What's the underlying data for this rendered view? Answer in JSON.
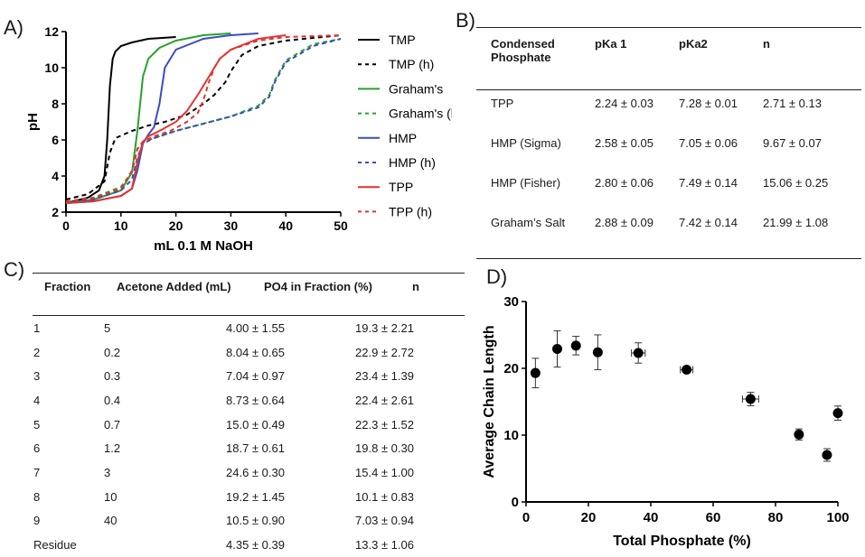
{
  "panel_labels": {
    "a": "A)",
    "b": "B)",
    "c": "C)",
    "d": "D)"
  },
  "chart_data": [
    {
      "type": "line",
      "xlabel": "mL 0.1 M NaOH",
      "ylabel": "pH",
      "xlim": [
        0,
        50
      ],
      "ylim": [
        2,
        12
      ],
      "xticks": [
        0,
        10,
        20,
        30,
        40,
        50
      ],
      "yticks": [
        2,
        4,
        6,
        8,
        10,
        12
      ],
      "grid": false,
      "legend_position": "right",
      "series": [
        {
          "name": "TMP",
          "color": "#000000",
          "dashed": false,
          "x": [
            0,
            4,
            6,
            7,
            7.5,
            8,
            8.5,
            9,
            10,
            12,
            15,
            20
          ],
          "y": [
            2.5,
            2.8,
            3.2,
            4.0,
            6.0,
            9.0,
            10.5,
            10.9,
            11.2,
            11.4,
            11.6,
            11.7
          ]
        },
        {
          "name": "TMP (h)",
          "color": "#000000",
          "dashed": true,
          "x": [
            0,
            4,
            7,
            8,
            9,
            12,
            15,
            18,
            22,
            25,
            27,
            29,
            30,
            32,
            35,
            40,
            50
          ],
          "y": [
            2.7,
            3.0,
            3.7,
            5.3,
            6.1,
            6.5,
            6.8,
            7.0,
            7.4,
            8.0,
            8.5,
            9.2,
            9.8,
            10.7,
            11.2,
            11.5,
            11.8
          ]
        },
        {
          "name": "Graham's",
          "color": "#2ca02c",
          "dashed": false,
          "x": [
            0,
            5,
            10,
            12,
            13,
            14,
            15,
            17,
            20,
            25,
            30
          ],
          "y": [
            2.5,
            2.7,
            3.2,
            4.2,
            6.5,
            9.5,
            10.5,
            11.1,
            11.5,
            11.8,
            11.9
          ]
        },
        {
          "name": "Graham's (h)",
          "color": "#2ca02c",
          "dashed": true,
          "x": [
            0,
            5,
            10,
            12,
            13,
            14,
            16,
            20,
            25,
            30,
            35,
            37,
            38,
            40,
            45,
            50
          ],
          "y": [
            2.5,
            2.8,
            3.4,
            4.2,
            5.5,
            5.9,
            6.1,
            6.5,
            6.9,
            7.3,
            7.9,
            8.5,
            9.3,
            10.4,
            11.3,
            11.6
          ]
        },
        {
          "name": "HMP",
          "color": "#3b4cc0",
          "dashed": false,
          "x": [
            0,
            5,
            10,
            12,
            13,
            14,
            15,
            16,
            17,
            18,
            20,
            25,
            30,
            35
          ],
          "y": [
            2.5,
            2.6,
            2.9,
            3.3,
            4.3,
            5.8,
            6.3,
            6.7,
            8.0,
            10.0,
            11.0,
            11.6,
            11.8,
            11.9
          ]
        },
        {
          "name": "HMP (h)",
          "color": "#3b4cc0",
          "dashed": true,
          "x": [
            0,
            5,
            10,
            12,
            13,
            14,
            16,
            20,
            25,
            30,
            35,
            37,
            38,
            40,
            45,
            50
          ],
          "y": [
            2.5,
            2.7,
            3.2,
            3.8,
            5.0,
            5.8,
            6.1,
            6.5,
            6.9,
            7.3,
            7.8,
            8.4,
            9.2,
            10.3,
            11.2,
            11.6
          ]
        },
        {
          "name": "TPP",
          "color": "#e3342f",
          "dashed": false,
          "x": [
            0,
            5,
            10,
            12,
            13,
            14,
            15,
            17,
            20,
            22,
            24,
            26,
            28,
            30,
            35,
            40
          ],
          "y": [
            2.5,
            2.6,
            2.9,
            3.3,
            4.8,
            5.9,
            6.2,
            6.5,
            7.0,
            7.6,
            8.5,
            9.5,
            10.5,
            11.0,
            11.6,
            11.8
          ]
        },
        {
          "name": "TPP (h)",
          "color": "#e3342f",
          "dashed": true,
          "x": [
            0,
            5,
            10,
            12,
            13,
            14,
            16,
            19,
            22,
            24,
            25,
            26,
            27,
            28,
            30,
            35,
            40,
            50
          ],
          "y": [
            2.6,
            2.8,
            3.3,
            4.3,
            5.5,
            5.9,
            6.2,
            6.5,
            7.0,
            7.5,
            8.2,
            9.2,
            10.0,
            10.5,
            11.0,
            11.5,
            11.7,
            11.8
          ]
        }
      ]
    },
    {
      "type": "table",
      "columns": [
        "Condensed Phosphate",
        "pKa 1",
        "pKa2",
        "n"
      ],
      "rows": [
        [
          "TPP",
          "2.24 ± 0.03",
          "7.28 ± 0.01",
          "2.71 ± 0.13"
        ],
        [
          "HMP (Sigma)",
          "2.58 ± 0.05",
          "7.05 ± 0.06",
          "9.67 ± 0.07"
        ],
        [
          "HMP (Fisher)",
          "2.80 ± 0.06",
          "7.49 ± 0.14",
          "15.06 ± 0.25"
        ],
        [
          "Graham’s Salt",
          "2.88 ± 0.09",
          "7.42 ± 0.14",
          "21.99 ± 1.08"
        ]
      ]
    },
    {
      "type": "table",
      "columns": [
        "Fraction",
        "Acetone Added (mL)",
        "PO4 in Fraction (%)",
        "n"
      ],
      "rows": [
        [
          "1",
          "5",
          "4.00 ± 1.55",
          "19.3 ± 2.21"
        ],
        [
          "2",
          "0.2",
          "8.04 ± 0.65",
          "22.9 ± 2.72"
        ],
        [
          "3",
          "0.3",
          "7.04 ± 0.97",
          "23.4 ± 1.39"
        ],
        [
          "4",
          "0.4",
          "8.73 ± 0.64",
          "22.4 ± 2.61"
        ],
        [
          "5",
          "0.7",
          "15.0 ± 0.49",
          "22.3 ± 1.52"
        ],
        [
          "6",
          "1.2",
          "18.7 ± 0.61",
          "19.8 ± 0.30"
        ],
        [
          "7",
          "3",
          "24.6 ± 0.30",
          "15.4 ± 1.00"
        ],
        [
          "8",
          "10",
          "19.2 ± 1.45",
          "10.1 ± 0.83"
        ],
        [
          "9",
          "40",
          "10.5 ± 0.90",
          "7.03 ± 0.94"
        ],
        [
          "Residue",
          "",
          "4.35 ± 0.39",
          "13.3 ± 1.06"
        ]
      ]
    },
    {
      "type": "scatter",
      "xlabel": "Total Phosphate (%)",
      "ylabel": "Average Chain Length",
      "xlim": [
        0,
        100
      ],
      "ylim": [
        0,
        30
      ],
      "xticks": [
        0,
        20,
        40,
        60,
        80,
        100
      ],
      "yticks": [
        0,
        10,
        20,
        30
      ],
      "grid": false,
      "points": [
        {
          "x": 3.0,
          "y": 19.3,
          "xerr": 0.8,
          "yerr": 2.21
        },
        {
          "x": 10.0,
          "y": 22.9,
          "xerr": 0.6,
          "yerr": 2.72
        },
        {
          "x": 16.0,
          "y": 23.4,
          "xerr": 1.0,
          "yerr": 1.39
        },
        {
          "x": 23.0,
          "y": 22.4,
          "xerr": 0.6,
          "yerr": 2.61
        },
        {
          "x": 36.0,
          "y": 22.3,
          "xerr": 2.2,
          "yerr": 1.52
        },
        {
          "x": 51.5,
          "y": 19.8,
          "xerr": 2.0,
          "yerr": 0.3
        },
        {
          "x": 72.0,
          "y": 15.4,
          "xerr": 2.6,
          "yerr": 1.0
        },
        {
          "x": 87.5,
          "y": 10.1,
          "xerr": 1.0,
          "yerr": 0.83
        },
        {
          "x": 96.5,
          "y": 7.03,
          "xerr": 1.0,
          "yerr": 0.94
        },
        {
          "x": 100.0,
          "y": 13.3,
          "xerr": 0.4,
          "yerr": 1.06
        }
      ]
    }
  ]
}
